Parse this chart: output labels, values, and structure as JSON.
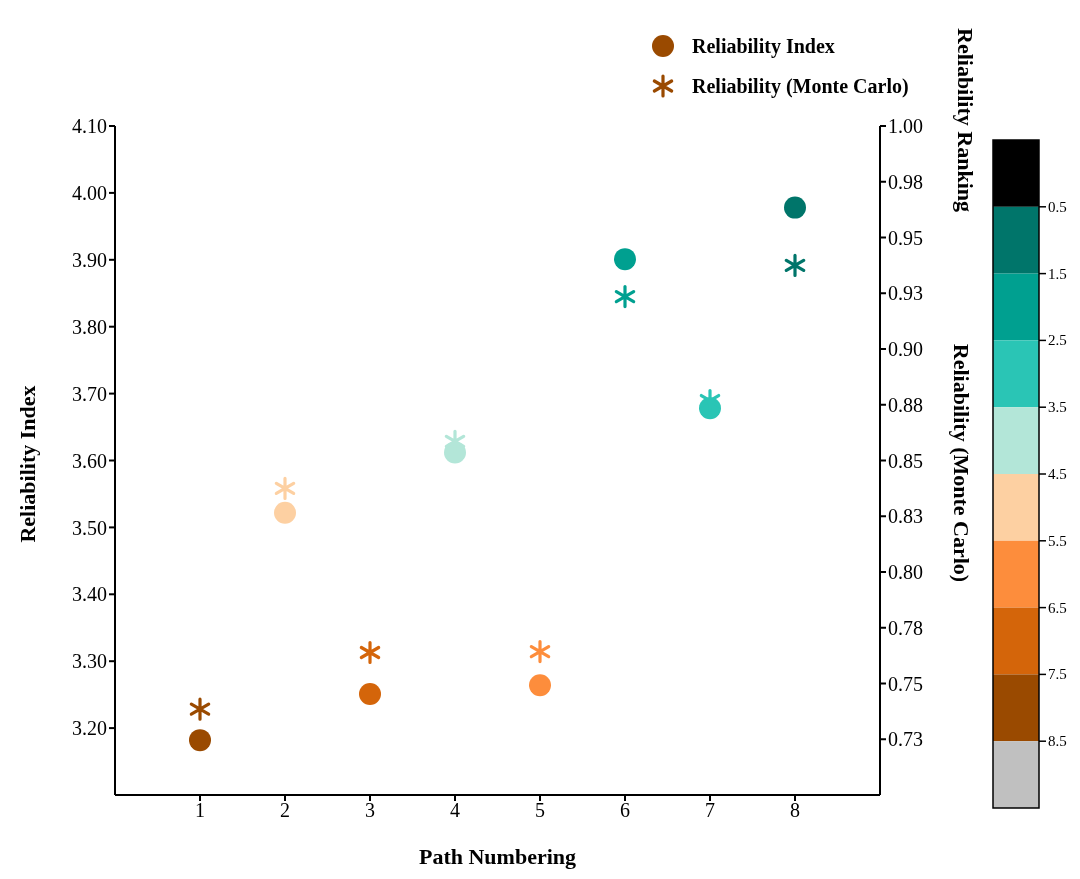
{
  "chart_data": {
    "type": "scatter",
    "xlabel": "Path Numbering",
    "ylabel": "Reliability Index",
    "y2label": "Reliability (Monte Carlo)",
    "clabel": "Reliability Ranking",
    "x": [
      1,
      2,
      3,
      4,
      5,
      6,
      7,
      8
    ],
    "series": [
      {
        "name": "Reliability Index",
        "colors": [
          "#9a4a00",
          "#fdd0a2",
          "#d4650a",
          "#b3e6d8",
          "#fd8d3c",
          "#00a090",
          "#2ac5b5",
          "#00756a"
        ],
        "marker": "circle",
        "values": [
          3.182,
          3.522,
          3.251,
          3.612,
          3.264,
          3.901,
          3.678,
          3.978
        ],
        "cvalues": [
          8,
          5,
          7,
          4,
          6,
          2,
          3,
          1
        ]
      },
      {
        "name": "Reliability (Monte Carlo)",
        "colors": [
          "#9a4a00",
          "#fdd0a2",
          "#d4650a",
          "#b3e6d8",
          "#fd8d3c",
          "#00a090",
          "#2ac5b5",
          "#00756a"
        ],
        "marker": "cross",
        "axis": "y2",
        "values": [
          0.7385,
          0.8375,
          0.7639,
          0.8586,
          0.7643,
          0.9235,
          0.8769,
          0.9375
        ],
        "cvalues": [
          8,
          5,
          7,
          4,
          6,
          2,
          3,
          1
        ]
      }
    ],
    "xlim": [
      0,
      9
    ],
    "xticks": [
      1,
      2,
      3,
      4,
      5,
      6,
      7,
      8
    ],
    "ylim": [
      3.1,
      4.1
    ],
    "yticks": [
      {
        "value": 3.2,
        "label": "3.20"
      },
      {
        "value": 3.3,
        "label": "3.30"
      },
      {
        "value": 3.4,
        "label": "3.40"
      },
      {
        "value": 3.5,
        "label": "3.50"
      },
      {
        "value": 3.6,
        "label": "3.60"
      },
      {
        "value": 3.7,
        "label": "3.70"
      },
      {
        "value": 3.8,
        "label": "3.80"
      },
      {
        "value": 3.9,
        "label": "3.90"
      },
      {
        "value": 4.0,
        "label": "4.00"
      },
      {
        "value": 4.1,
        "label": "4.10"
      }
    ],
    "y2lim": [
      0.7,
      1.0
    ],
    "y2ticks": [
      {
        "value": 0.725,
        "label": "0.73"
      },
      {
        "value": 0.75,
        "label": "0.75"
      },
      {
        "value": 0.775,
        "label": "0.78"
      },
      {
        "value": 0.8,
        "label": "0.80"
      },
      {
        "value": 0.825,
        "label": "0.83"
      },
      {
        "value": 0.85,
        "label": "0.85"
      },
      {
        "value": 0.875,
        "label": "0.88"
      },
      {
        "value": 0.9,
        "label": "0.90"
      },
      {
        "value": 0.925,
        "label": "0.93"
      },
      {
        "value": 0.95,
        "label": "0.95"
      },
      {
        "value": 0.975,
        "label": "0.98"
      },
      {
        "value": 1.0,
        "label": "1.00"
      }
    ],
    "clim": [
      -0.5,
      9.5
    ],
    "cticks": [
      0.5,
      1.5,
      2.5,
      3.5,
      4.5,
      5.5,
      6.5,
      7.5,
      8.5
    ],
    "legend": "top right"
  }
}
